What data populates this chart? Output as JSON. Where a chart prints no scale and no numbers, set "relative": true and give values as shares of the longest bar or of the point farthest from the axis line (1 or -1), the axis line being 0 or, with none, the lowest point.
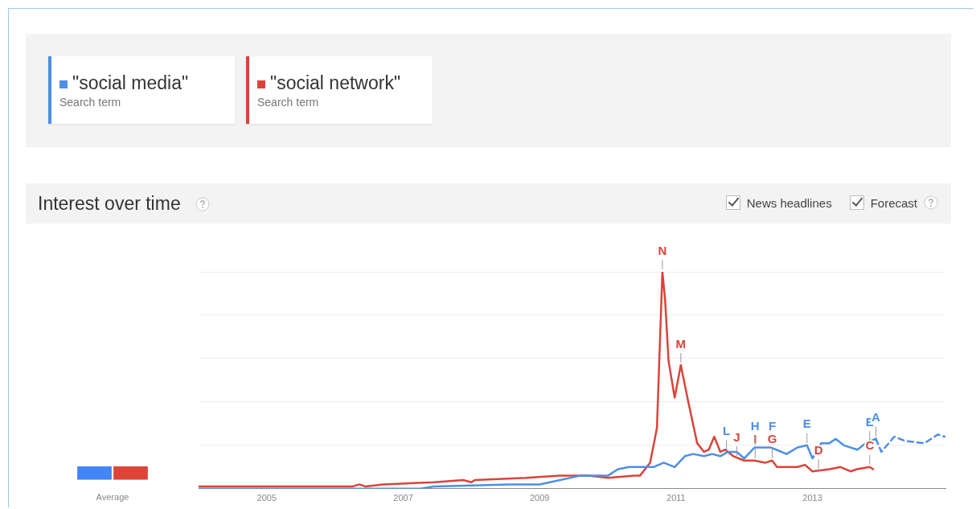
{
  "chart_data": [
    {
      "type": "line",
      "title": "Interest over time",
      "relative": true,
      "grid": "y",
      "legend": "top left",
      "marker": "none",
      "xlim": [
        2004,
        2014.95
      ],
      "xticks": [
        2005,
        2007,
        2009,
        2011,
        2013
      ],
      "series": [
        {
          "name": "\"social media\"",
          "color": "#4d8fe6",
          "x": [
            2004.0,
            2007.25,
            2007.45,
            2008.55,
            2009.0,
            2009.15,
            2009.59,
            2009.72,
            2010.0,
            2010.15,
            2010.31,
            2010.51,
            2010.67,
            2010.82,
            2010.98,
            2011.13,
            2011.25,
            2011.41,
            2011.53,
            2011.65,
            2011.76,
            2011.89,
            2012.0,
            2012.15,
            2012.39,
            2012.47,
            2012.62,
            2012.78,
            2012.92,
            2013.0,
            2013.13,
            2013.25,
            2013.34,
            2013.46,
            2013.66,
            2013.78,
            2013.93
          ],
          "values": [
            0,
            0,
            0.01,
            0.02,
            0.02,
            0.03,
            0.06,
            0.06,
            0.06,
            0.09,
            0.1,
            0.1,
            0.1,
            0.12,
            0.1,
            0.15,
            0.16,
            0.15,
            0.16,
            0.15,
            0.17,
            0.17,
            0.14,
            0.19,
            0.19,
            0.18,
            0.16,
            0.19,
            0.2,
            0.14,
            0.21,
            0.21,
            0.23,
            0.2,
            0.18,
            0.21,
            0.23
          ]
        },
        {
          "name": "\"social network\"",
          "color": "#d9443a",
          "x": [
            2004.0,
            2006.25,
            2006.36,
            2006.45,
            2006.7,
            2007.45,
            2007.88,
            2008.0,
            2008.05,
            2008.8,
            2009.29,
            2009.45,
            2009.72,
            2010.0,
            2010.39,
            2010.47,
            2010.62,
            2010.72,
            2010.8,
            2010.84,
            2010.89,
            2010.98,
            2011.07,
            2011.18,
            2011.31,
            2011.41,
            2011.48,
            2011.56,
            2011.65,
            2011.72,
            2011.84,
            2012.0,
            2012.15,
            2012.31,
            2012.41,
            2012.48,
            2012.78,
            2012.89,
            2013.0,
            2013.25,
            2013.41,
            2013.56,
            2013.65,
            2013.84,
            2013.89
          ],
          "values": [
            0.01,
            0.01,
            0.02,
            0.01,
            0.02,
            0.03,
            0.04,
            0.03,
            0.04,
            0.05,
            0.06,
            0.06,
            0.06,
            0.05,
            0.06,
            0.06,
            0.12,
            0.28,
            1,
            0.87,
            0.59,
            0.42,
            0.57,
            0.4,
            0.21,
            0.17,
            0.18,
            0.24,
            0.17,
            0.18,
            0.15,
            0.13,
            0.13,
            0.12,
            0.13,
            0.1,
            0.1,
            0.11,
            0.08,
            0.09,
            0.1,
            0.08,
            0.09,
            0.1,
            0.09
          ]
        },
        {
          "color": "#4d8fe6",
          "line_style": "dashed",
          "x": [
            2013.93,
            2014.01,
            2014.2,
            2014.36,
            2014.64,
            2014.84,
            2014.94
          ],
          "values": [
            0.23,
            0.17,
            0.24,
            0.22,
            0.21,
            0.25,
            0.24
          ]
        }
      ],
      "annotations": [
        "Search term",
        "Search term",
        "News headlines",
        "Forecast",
        {
          "text": "N",
          "x": 2010.8,
          "y": 1
        },
        {
          "text": "M",
          "x": 2011.07,
          "y": 0.57
        },
        {
          "text": "L",
          "x": 2011.74,
          "y": 0.17
        },
        {
          "text": "J",
          "x": 2011.89,
          "y": 0.14
        },
        {
          "text": "I",
          "x": 2012.16,
          "y": 0.13
        },
        {
          "text": "H",
          "x": 2012.16,
          "y": 0.19
        },
        {
          "text": "F",
          "x": 2012.41,
          "y": 0.19
        },
        {
          "text": "G",
          "x": 2012.41,
          "y": 0.13
        },
        {
          "text": "E",
          "x": 2012.92,
          "y": 0.2
        },
        {
          "text": "D",
          "x": 2013.09,
          "y": 0.08
        },
        {
          "text": "C",
          "x": 2013.84,
          "y": 0.1
        },
        {
          "text": "E",
          "x": 2013.84,
          "y": 0.21
        },
        {
          "text": "A",
          "x": 2013.93,
          "y": 0.23
        }
      ]
    },
    {
      "type": "bar",
      "relative": true,
      "categories": [
        null,
        null
      ],
      "values": [
        1,
        1
      ],
      "colors": [
        "#4285f4",
        "#db4437"
      ],
      "annotations": [
        "Average"
      ]
    }
  ]
}
